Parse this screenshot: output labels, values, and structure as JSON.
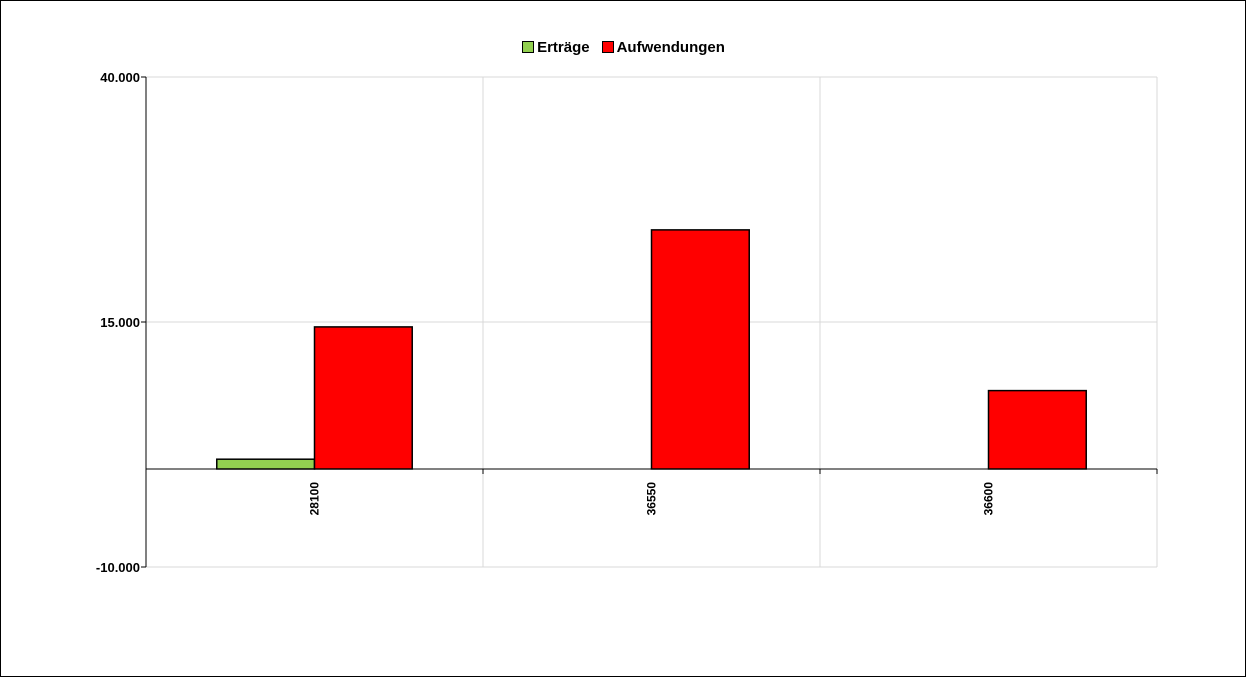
{
  "chart_data": {
    "type": "bar",
    "categories": [
      "28100",
      "36550",
      "36600"
    ],
    "series": [
      {
        "name": "Erträge",
        "values": [
          1000,
          0,
          0
        ],
        "color": "#92d050"
      },
      {
        "name": "Aufwendungen",
        "values": [
          14500,
          24400,
          8000
        ],
        "color": "#ff0000"
      }
    ],
    "ylim": [
      -10000,
      40000
    ],
    "yticks": [
      40000,
      15000,
      -10000
    ],
    "ytick_labels": [
      "40.000",
      "15.000",
      "-10.000"
    ],
    "grid": true,
    "legend": "top-center"
  }
}
